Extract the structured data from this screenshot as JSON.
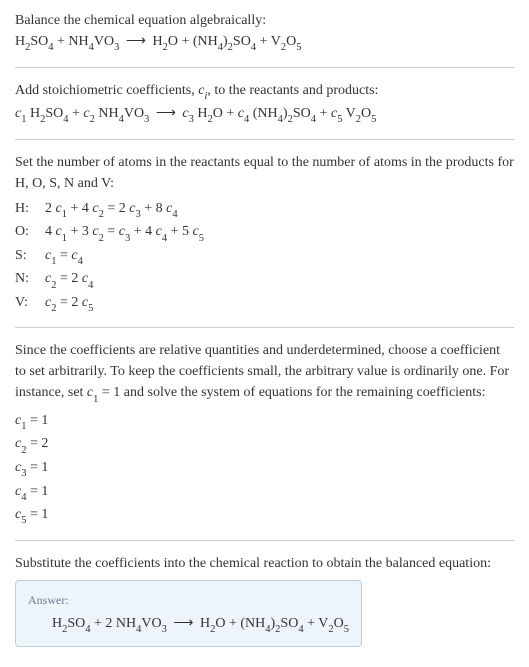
{
  "text_color": "#333333",
  "background_color": "#ffffff",
  "divider_color": "#cccccc",
  "answer_box": {
    "background_color": "#edf4fa",
    "border_color": "#b8cfe0",
    "label_color": "#6b7d8f"
  },
  "intro": {
    "line1": "Balance the chemical equation algebraically:",
    "equation_html": "H<span class=\"sub\">2</span>SO<span class=\"sub\">4</span> + NH<span class=\"sub\">4</span>VO<span class=\"sub\">3</span> <span class=\"arrow\">⟶</span> H<span class=\"sub\">2</span>O + (NH<span class=\"sub\">4</span>)<span class=\"sub\">2</span>SO<span class=\"sub\">4</span> + V<span class=\"sub\">2</span>O<span class=\"sub\">5</span>"
  },
  "stoich": {
    "text_html": "Add stoichiometric coefficients, <span class=\"italic\">c<span class=\"sub\">i</span></span>, to the reactants and products:",
    "equation_html": "<span class=\"italic\">c</span><span class=\"sub\">1</span> H<span class=\"sub\">2</span>SO<span class=\"sub\">4</span> + <span class=\"italic\">c</span><span class=\"sub\">2</span> NH<span class=\"sub\">4</span>VO<span class=\"sub\">3</span> <span class=\"arrow\">⟶</span> <span class=\"italic\">c</span><span class=\"sub\">3</span> H<span class=\"sub\">2</span>O + <span class=\"italic\">c</span><span class=\"sub\">4</span> (NH<span class=\"sub\">4</span>)<span class=\"sub\">2</span>SO<span class=\"sub\">4</span> + <span class=\"italic\">c</span><span class=\"sub\">5</span> V<span class=\"sub\">2</span>O<span class=\"sub\">5</span>"
  },
  "atoms": {
    "intro": "Set the number of atoms in the reactants equal to the number of atoms in the products for H, O, S, N and V:",
    "rows": [
      {
        "label": "H:",
        "eq_html": "2 <span class=\"italic\">c</span><span class=\"sub\">1</span> + 4 <span class=\"italic\">c</span><span class=\"sub\">2</span> = 2 <span class=\"italic\">c</span><span class=\"sub\">3</span> + 8 <span class=\"italic\">c</span><span class=\"sub\">4</span>"
      },
      {
        "label": "O:",
        "eq_html": "4 <span class=\"italic\">c</span><span class=\"sub\">1</span> + 3 <span class=\"italic\">c</span><span class=\"sub\">2</span> = <span class=\"italic\">c</span><span class=\"sub\">3</span> + 4 <span class=\"italic\">c</span><span class=\"sub\">4</span> + 5 <span class=\"italic\">c</span><span class=\"sub\">5</span>"
      },
      {
        "label": "S:",
        "eq_html": "<span class=\"italic\">c</span><span class=\"sub\">1</span> = <span class=\"italic\">c</span><span class=\"sub\">4</span>"
      },
      {
        "label": "N:",
        "eq_html": "<span class=\"italic\">c</span><span class=\"sub\">2</span> = 2 <span class=\"italic\">c</span><span class=\"sub\">4</span>"
      },
      {
        "label": "V:",
        "eq_html": "<span class=\"italic\">c</span><span class=\"sub\">2</span> = 2 <span class=\"italic\">c</span><span class=\"sub\">5</span>"
      }
    ]
  },
  "solve": {
    "text_html": "Since the coefficients are relative quantities and underdetermined, choose a coefficient to set arbitrarily. To keep the coefficients small, the arbitrary value is ordinarily one. For instance, set <span class=\"italic\">c</span><span class=\"sub\">1</span> = 1 and solve the system of equations for the remaining coefficients:",
    "coeffs": [
      "<span class=\"italic\">c</span><span class=\"sub\">1</span> = 1",
      "<span class=\"italic\">c</span><span class=\"sub\">2</span> = 2",
      "<span class=\"italic\">c</span><span class=\"sub\">3</span> = 1",
      "<span class=\"italic\">c</span><span class=\"sub\">4</span> = 1",
      "<span class=\"italic\">c</span><span class=\"sub\">5</span> = 1"
    ]
  },
  "substitute": {
    "text": "Substitute the coefficients into the chemical reaction to obtain the balanced equation:"
  },
  "answer": {
    "label": "Answer:",
    "equation_html": "H<span class=\"sub\">2</span>SO<span class=\"sub\">4</span> + 2 NH<span class=\"sub\">4</span>VO<span class=\"sub\">3</span> <span class=\"arrow\">⟶</span> H<span class=\"sub\">2</span>O + (NH<span class=\"sub\">4</span>)<span class=\"sub\">2</span>SO<span class=\"sub\">4</span> + V<span class=\"sub\">2</span>O<span class=\"sub\">5</span>"
  }
}
